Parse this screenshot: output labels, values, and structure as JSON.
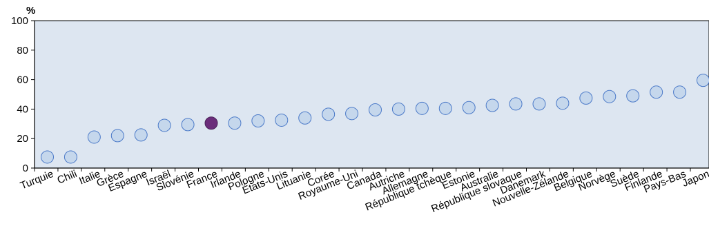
{
  "chart_data": {
    "type": "scatter",
    "title": "",
    "xlabel": "",
    "ylabel": "%",
    "ylim": [
      0,
      100
    ],
    "yticks": [
      0,
      20,
      40,
      60,
      80,
      100
    ],
    "grid": false,
    "categories": [
      "Turquie",
      "Chili",
      "Italie",
      "Grèce",
      "Espagne",
      "Israël",
      "Slovénie",
      "France",
      "Irlande",
      "Pologne",
      "États-Unis",
      "Lituanie",
      "Corée",
      "Royaume-Uni",
      "Canada",
      "Autriche",
      "Allemagne",
      "République tchèque",
      "Estonie",
      "Australie",
      "République slovaque",
      "Danemark",
      "Nouvelle-Zélande",
      "Belgique",
      "Norvège",
      "Suède",
      "Finlande",
      "Pays-Bas",
      "Japon"
    ],
    "values": [
      7.5,
      7.5,
      21,
      22,
      22.5,
      29,
      29.5,
      30.5,
      30.5,
      32,
      32.5,
      34,
      36.5,
      37,
      39.5,
      40,
      40.5,
      40.5,
      41,
      42.5,
      43.5,
      43.5,
      44,
      47.5,
      48.5,
      49,
      51.5,
      51.5,
      59.5
    ],
    "highlight": "France",
    "colors": {
      "plot_bg": "#dde6f1",
      "marker_fill": "#c5d7ec",
      "marker_stroke": "#4a79c8",
      "highlight_fill": "#6b2d7b",
      "highlight_stroke": "#4a2459",
      "axis": "#000000"
    }
  }
}
